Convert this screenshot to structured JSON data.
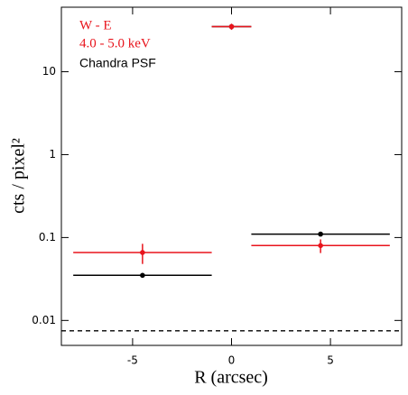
{
  "chart_data": {
    "type": "errorbar",
    "xlabel": "R (arcsec)",
    "ylabel": "cts / pixel²",
    "xlim": [
      -8.6,
      8.6
    ],
    "xticks": [
      -5,
      0,
      5
    ],
    "ylim": [
      0.005,
      60
    ],
    "yticks": [
      0.01,
      0.1,
      1,
      10
    ],
    "ylog": true,
    "annotation": {
      "text": "4.0 - 5.0 keV",
      "color": "#e8141c"
    },
    "reference_line": 0.0075,
    "series": [
      {
        "name": "Chandra PSF",
        "color": "#000000",
        "x": [
          -4.5,
          0,
          4.5
        ],
        "xerr": [
          3.5,
          1.0,
          3.5
        ],
        "values": [
          0.035,
          35,
          0.11
        ],
        "yerr": [
          0.002,
          1.5,
          0.005
        ]
      },
      {
        "name": "W - E",
        "color": "#e8141c",
        "x": [
          -4.5,
          0,
          4.5
        ],
        "xerr": [
          3.5,
          1.0,
          3.5
        ],
        "values": [
          0.066,
          35,
          0.08
        ],
        "yerr": [
          0.018,
          3,
          0.015
        ]
      }
    ]
  }
}
